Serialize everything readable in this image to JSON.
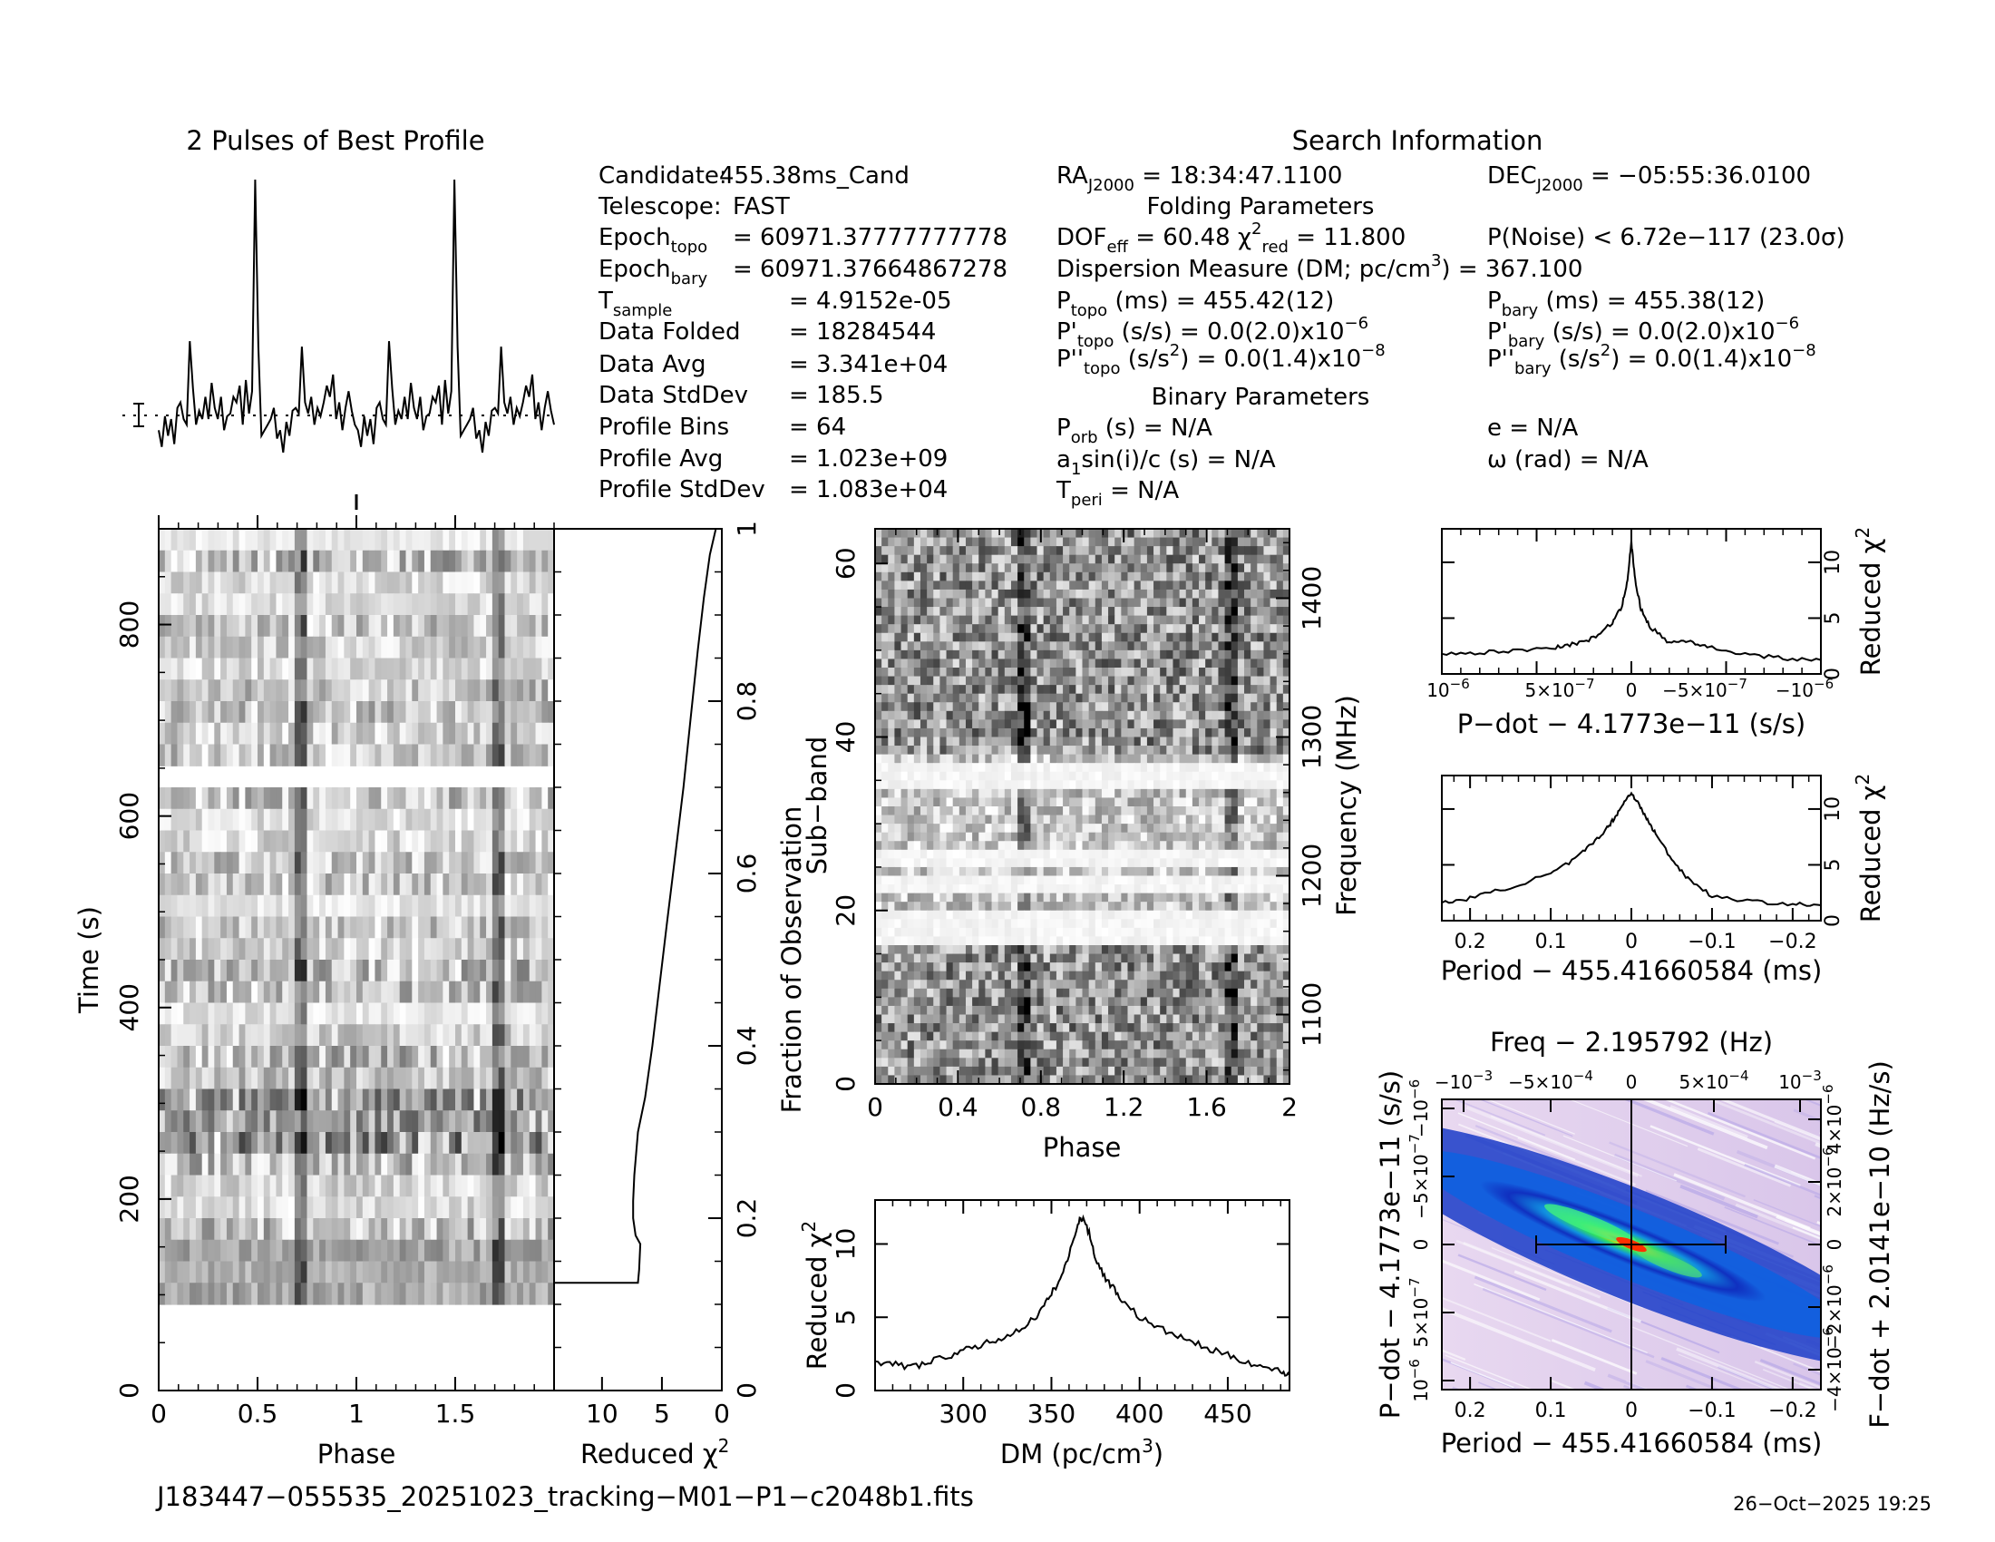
{
  "profile": {
    "title": "2 Pulses of Best Profile",
    "values": [
      0.1,
      0.04,
      0.15,
      0.08,
      0.14,
      0.05,
      0.18,
      0.2,
      0.14,
      0.12,
      0.42,
      0.25,
      0.12,
      0.17,
      0.14,
      0.22,
      0.14,
      0.27,
      0.18,
      0.14,
      0.22,
      0.1,
      0.15,
      0.16,
      0.22,
      0.2,
      0.26,
      0.12,
      0.28,
      0.16,
      0.24,
      1.0,
      0.4,
      0.08,
      0.1,
      0.12,
      0.14,
      0.18,
      0.07,
      0.1,
      0.02,
      0.13,
      0.08,
      0.17,
      0.18,
      0.16,
      0.4,
      0.2,
      0.16,
      0.22,
      0.12,
      0.18,
      0.15,
      0.2,
      0.26,
      0.22,
      0.3,
      0.14,
      0.2,
      0.1,
      0.18,
      0.24,
      0.17,
      0.12
    ]
  },
  "search": {
    "title": "Search Information",
    "folding_title": "Folding Parameters",
    "binary_title": "Binary Parameters",
    "col1": [
      {
        "k": "Candidate:",
        "v": "455.38ms_Cand"
      },
      {
        "k": "Telescope:",
        "v": "FAST"
      },
      {
        "k": "Epoch",
        "sub": "topo",
        "v": "= 60971.37777777778"
      },
      {
        "k": "Epoch",
        "sub": "bary",
        "v": "= 60971.37664867278"
      },
      {
        "k": "T",
        "sub": "sample",
        "v": "=  4.9152e-05"
      },
      {
        "k": "Data Folded",
        "v": "=  18284544"
      },
      {
        "k": "Data Avg",
        "v": "=  3.341e+04"
      },
      {
        "k": "Data StdDev",
        "v": "=  185.5"
      },
      {
        "k": "Profile Bins",
        "v": "=  64"
      },
      {
        "k": "Profile Avg",
        "v": "=  1.023e+09"
      },
      {
        "k": "Profile StdDev",
        "v": "=  1.083e+04"
      }
    ],
    "ra_label": "RA",
    "ra_sub": "J2000",
    "ra_value": "= 18:34:47.1100",
    "dec_label": "DEC",
    "dec_sub": "J2000",
    "dec_value": "= −05:55:36.0100",
    "dof_text": "DOF",
    "dof_sub": "eff",
    "dof_value": "= 60.48",
    "chi_text": "χ",
    "chi_sup": "2",
    "chi_sub": "red",
    "chi_value": "= 11.800",
    "pnoise": "P(Noise) < 6.72e−117  (23.0σ)",
    "dm_line": "Dispersion Measure (DM; pc/cm",
    "dm_sup": "3",
    "dm_value": ") = 367.100",
    "ptopo": "P",
    "ptopo_sub": "topo",
    "ptopo_value": "(ms) =  455.42(12)",
    "pbary": "P",
    "pbary_sub": "bary",
    "pbary_value": "(ms) =  455.38(12)",
    "pdtopo_value": "(s/s) = 0.0(2.0)x10",
    "pdtopo_exp": "−6",
    "pdbary_value": "(s/s) = 0.0(2.0)x10",
    "pdbary_exp": "−6",
    "pddtopo_value": "(s/s",
    "pddtopo_tail": ") = 0.0(1.4)x10",
    "pddtopo_exp": "−8",
    "pddbary_value": "(s/s",
    "pddbary_tail": ") = 0.0(1.4)x10",
    "pddbary_exp": "−8",
    "porb": "P",
    "porb_sub": "orb",
    "porb_value": "(s) = N/A",
    "e_value": "e = N/A",
    "asini_a": "a",
    "asini_sub": "1",
    "asini_value": "sin(i)/c (s) = N/A",
    "omega_value": "ω (rad) = N/A",
    "tperi": "T",
    "tperi_sub": "peri",
    "tperi_value": "= N/A"
  },
  "subints": {
    "xlabel": "Phase",
    "ylabel": "Time (s)",
    "x_ticks": [
      "0",
      "0.5",
      "1",
      "1.5"
    ],
    "y_ticks": [
      "0",
      "200",
      "400",
      "600",
      "800"
    ],
    "right_label": "Fraction of Observation",
    "right_ticks": [
      "0",
      "0.2",
      "0.4",
      "0.6",
      "0.8",
      "1"
    ]
  },
  "chi_vs_time": {
    "xlabel": "Reduced",
    "x_ticks": [
      "10",
      "5",
      "0"
    ]
  },
  "subbands": {
    "xlabel": "Phase",
    "ylabel": "Sub−band",
    "right_label": "Frequency (MHz)",
    "x_ticks": [
      "0",
      "0.4",
      "0.8",
      "1.2",
      "1.6",
      "2"
    ],
    "y_ticks": [
      "0",
      "20",
      "40",
      "60"
    ],
    "freq_ticks": [
      "1100",
      "1200",
      "1300",
      "1400"
    ]
  },
  "dm_plot": {
    "xlabel": "DM (pc/cm",
    "xlabel_sup": "3",
    "xlabel_close": ")",
    "ylabel": "Reduced",
    "x_ticks": [
      "300",
      "350",
      "400",
      "450"
    ],
    "y_ticks": [
      "0",
      "5",
      "10"
    ]
  },
  "pdot_plot": {
    "xlabel": "P−dot − 4.1773e−11 (s/s)",
    "ylabel": "Reduced",
    "x_ticks": [
      "10",
      "5×10",
      "0",
      "−5×10",
      "−10"
    ],
    "x_exps": [
      "−6",
      "−7",
      "",
      "−7",
      "−6"
    ],
    "y_ticks": [
      "0",
      "5",
      "10"
    ]
  },
  "period_plot": {
    "xlabel": "Period − 455.41660584 (ms)",
    "ylabel": "Reduced",
    "x_ticks": [
      "0.2",
      "0.1",
      "0",
      "−0.1",
      "−0.2"
    ],
    "y_ticks": [
      "0",
      "5",
      "10"
    ]
  },
  "pp_plane": {
    "top_label": "Freq − 2.195792 (Hz)",
    "top_ticks": [
      "−10",
      "−5×10",
      "0",
      "5×10",
      "10"
    ],
    "top_exps": [
      "−3",
      "−4",
      "",
      "−4",
      "−3"
    ],
    "xlabel": "Period − 455.41660584 (ms)",
    "x_ticks": [
      "0.2",
      "0.1",
      "0",
      "−0.1",
      "−0.2"
    ],
    "ylabel": "P−dot − 4.1773e−11 (s/s)",
    "left_ticks": [
      "10",
      "5×10",
      "0",
      "−5×10",
      "−10"
    ],
    "left_exps": [
      "−6",
      "−7",
      "",
      "−7",
      "−6"
    ],
    "right_label": "F−dot + 2.0141e−10 (Hz/s)",
    "right_ticks": [
      "−4×10",
      "−2×10",
      "0",
      "2×10",
      "4×10"
    ],
    "right_exps": [
      "−6",
      "−6",
      "",
      "−6",
      "−6"
    ]
  },
  "footer": {
    "filename": "J183447−055535_20251023_tracking−M01−P1−c2048b1.fits",
    "date": "26−Oct−2025 19:25"
  },
  "chart_data": [
    {
      "type": "line",
      "title": "2 Pulses of Best Profile",
      "x_range": [
        0,
        2
      ],
      "note_values": "see profile.values (64 bins, shown twice)"
    },
    {
      "type": "heatmap",
      "xlabel": "Phase",
      "ylabel": "Time (s)",
      "x_range": [
        0,
        2
      ],
      "ylim": [
        0,
        900
      ]
    },
    {
      "type": "line",
      "xlabel": "Reduced χ²",
      "x_range": [
        14,
        0
      ],
      "y_range": [
        0,
        1
      ],
      "x": [
        0.5,
        1.0,
        1.5,
        2.0,
        2.6,
        3.2,
        3.9,
        4.6,
        5.2,
        5.8,
        6.4,
        7.0,
        7.3,
        7.4,
        7.4,
        7.2,
        6.8,
        6.9,
        7.0
      ],
      "y": [
        1.0,
        0.97,
        0.92,
        0.86,
        0.78,
        0.7,
        0.62,
        0.54,
        0.47,
        0.4,
        0.34,
        0.3,
        0.25,
        0.22,
        0.2,
        0.18,
        0.17,
        0.14,
        0.125
      ]
    },
    {
      "type": "heatmap",
      "xlabel": "Phase",
      "ylabel": "Sub−band",
      "x_range": [
        0,
        2
      ],
      "ylim": [
        0,
        64
      ],
      "freq_range_mhz": [
        1050,
        1450
      ]
    },
    {
      "type": "line",
      "xlabel": "DM (pc/cm³)",
      "ylabel": "Reduced χ²",
      "xlim": [
        250,
        485
      ],
      "ylim": [
        0,
        13
      ],
      "x": [
        250,
        260,
        270,
        280,
        290,
        300,
        310,
        320,
        330,
        340,
        345,
        350,
        355,
        360,
        365,
        368,
        372,
        375,
        380,
        385,
        390,
        400,
        410,
        420,
        430,
        440,
        450,
        460,
        470,
        480,
        485
      ],
      "y": [
        2.0,
        1.8,
        1.6,
        1.9,
        2.3,
        2.7,
        3.1,
        3.5,
        4.0,
        4.9,
        5.6,
        6.6,
        7.6,
        9.2,
        11.5,
        11.8,
        10.5,
        9.0,
        7.8,
        7.0,
        6.2,
        5.0,
        4.3,
        3.8,
        3.3,
        2.8,
        2.4,
        2.0,
        1.6,
        1.3,
        1.1
      ]
    },
    {
      "type": "line",
      "xlabel": "P−dot − 4.1773e−11 (s/s)",
      "ylabel": "Reduced χ²",
      "xlim": [
        1e-06,
        -1e-06
      ],
      "ylim": [
        0,
        13
      ],
      "x": [
        1e-06,
        8e-07,
        6e-07,
        4e-07,
        3e-07,
        2e-07,
        1e-07,
        5e-08,
        2e-08,
        0,
        -2e-08,
        -5e-08,
        -1e-07,
        -2e-07,
        -3e-07,
        -4e-07,
        -6e-07,
        -8e-07,
        -1e-06
      ],
      "y": [
        1.8,
        1.9,
        2.1,
        2.4,
        2.7,
        3.2,
        4.6,
        6.0,
        8.5,
        11.8,
        8.4,
        5.8,
        4.2,
        2.8,
        3.0,
        2.4,
        1.8,
        1.4,
        1.2
      ]
    },
    {
      "type": "line",
      "xlabel": "Period − 455.41660584 (ms)",
      "ylabel": "Reduced χ²",
      "xlim": [
        0.235,
        -0.235
      ],
      "ylim": [
        0,
        13
      ],
      "x": [
        0.235,
        0.2,
        0.15,
        0.1,
        0.07,
        0.05,
        0.03,
        0.02,
        0.01,
        0,
        -0.01,
        -0.02,
        -0.03,
        -0.05,
        -0.07,
        -0.1,
        -0.15,
        -0.2,
        -0.235
      ],
      "y": [
        1.6,
        2.0,
        3.0,
        4.2,
        5.5,
        6.8,
        8.3,
        9.3,
        10.5,
        11.5,
        10.3,
        9.0,
        7.8,
        5.5,
        3.8,
        2.2,
        1.7,
        1.5,
        1.3
      ]
    },
    {
      "type": "heatmap",
      "title": "Freq − 2.195792 (Hz)",
      "xlabel": "Period − 455.41660584 (ms)",
      "ylabel": "P−dot − 4.1773e−11 (s/s)",
      "xlim": [
        0.235,
        -0.235
      ],
      "ylim": [
        1e-06,
        -1e-06
      ]
    }
  ]
}
